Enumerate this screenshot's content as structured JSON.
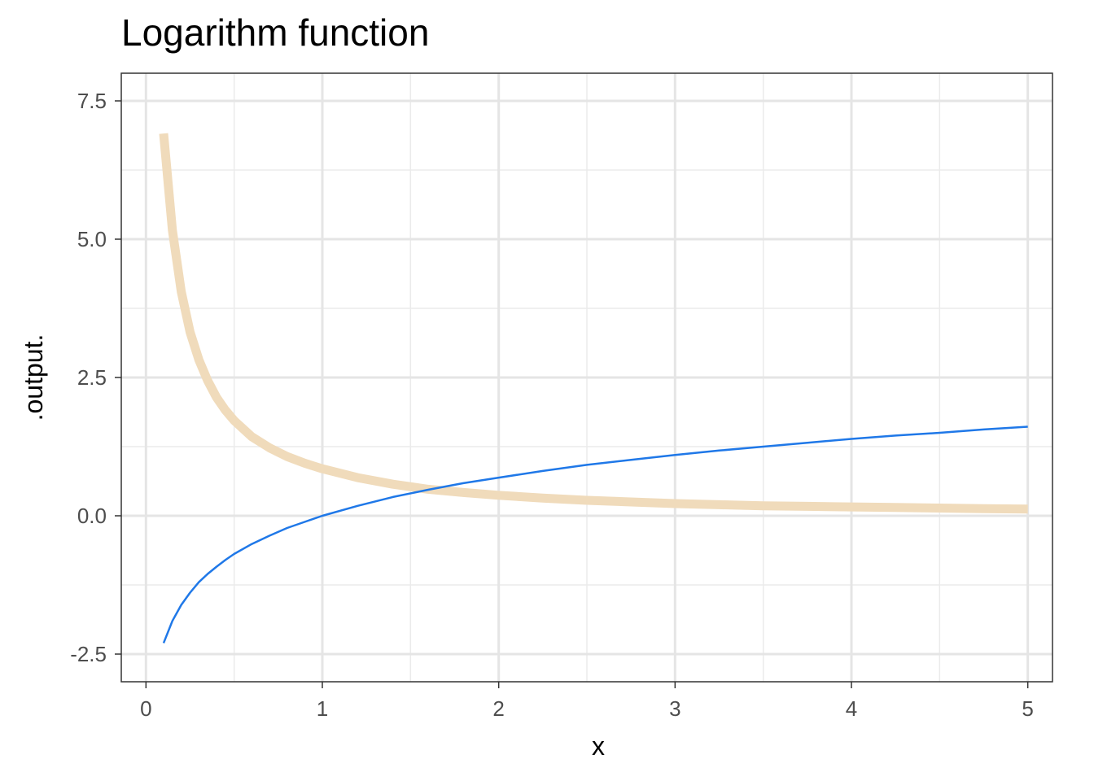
{
  "chart_data": {
    "type": "line",
    "title": "Logarithm function",
    "xlabel": "x",
    "ylabel": ".output.",
    "xlim": [
      -0.14,
      5.14
    ],
    "ylim": [
      -3.0,
      8.0
    ],
    "x_ticks": [
      0,
      1,
      2,
      3,
      4,
      5
    ],
    "x_tick_labels": [
      "0",
      "1",
      "2",
      "3",
      "4",
      "5"
    ],
    "x_minor_ticks": [
      0.5,
      1.5,
      2.5,
      3.5,
      4.5
    ],
    "y_ticks": [
      -2.5,
      0.0,
      2.5,
      5.0,
      7.5
    ],
    "y_tick_labels": [
      "-2.5",
      "0.0",
      "2.5",
      "5.0",
      "7.5"
    ],
    "y_minor_ticks": [
      -1.25,
      1.25,
      3.75,
      6.25
    ],
    "grid": true,
    "legend": "none",
    "x": [
      0.1,
      0.15,
      0.2,
      0.25,
      0.3,
      0.35,
      0.4,
      0.45,
      0.5,
      0.6,
      0.7,
      0.8,
      0.9,
      1.0,
      1.2,
      1.4,
      1.6,
      1.8,
      2.0,
      2.25,
      2.5,
      2.75,
      3.0,
      3.25,
      3.5,
      3.75,
      4.0,
      4.25,
      4.5,
      4.75,
      5.0
    ],
    "series": [
      {
        "color": "#f0dbbb",
        "values": [
          6.91,
          5.16,
          4.05,
          3.32,
          2.82,
          2.44,
          2.14,
          1.91,
          1.72,
          1.43,
          1.23,
          1.07,
          0.95,
          0.85,
          0.69,
          0.57,
          0.48,
          0.42,
          0.37,
          0.32,
          0.28,
          0.25,
          0.22,
          0.2,
          0.18,
          0.17,
          0.16,
          0.15,
          0.14,
          0.13,
          0.12
        ]
      },
      {
        "color": "#1f78e8",
        "values": [
          -2.3,
          -1.9,
          -1.61,
          -1.39,
          -1.2,
          -1.05,
          -0.92,
          -0.8,
          -0.69,
          -0.51,
          -0.36,
          -0.22,
          -0.11,
          0.0,
          0.18,
          0.34,
          0.47,
          0.59,
          0.69,
          0.81,
          0.92,
          1.01,
          1.1,
          1.18,
          1.25,
          1.32,
          1.39,
          1.45,
          1.5,
          1.56,
          1.61
        ]
      }
    ]
  }
}
